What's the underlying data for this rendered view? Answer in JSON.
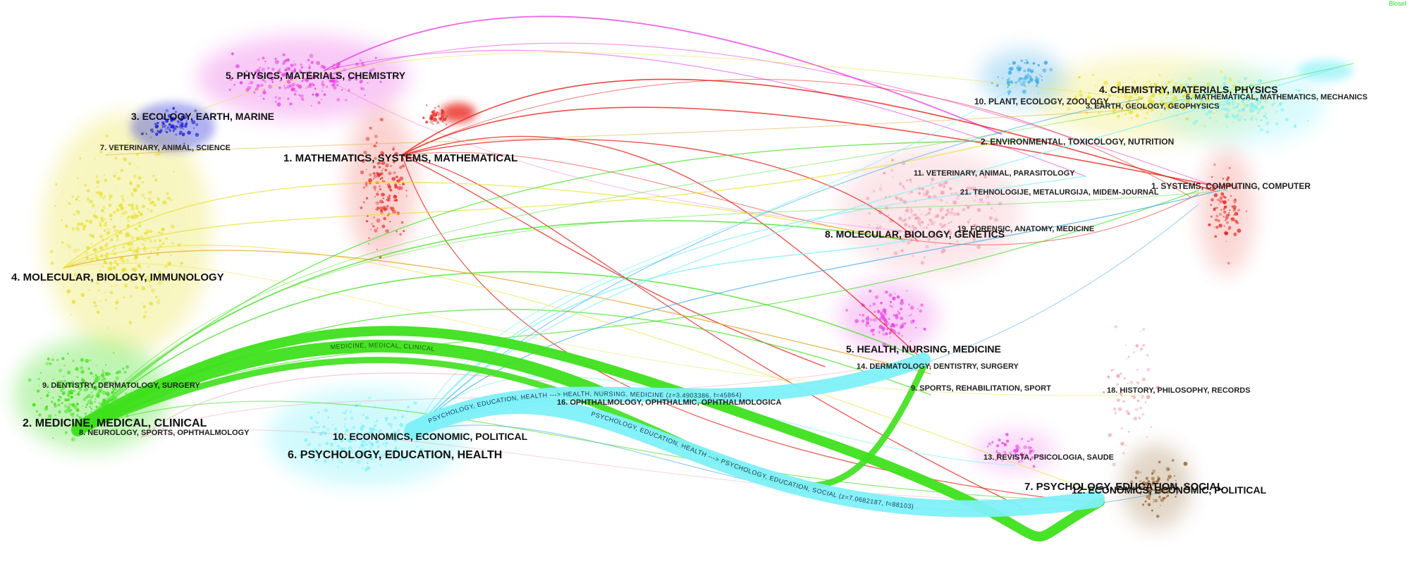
{
  "watermark": "Blosel",
  "colors": {
    "red": "#e8261f",
    "magenta": "#e83fe0",
    "yellow": "#e8e030",
    "green": "#3ee01c",
    "cyan": "#7ef0f8",
    "blue": "#1f22d8",
    "skyblue": "#3aa8e8",
    "orange": "#e0a020",
    "pink": "#f0a0b0",
    "brown": "#8a5a20"
  },
  "citing_clusters": [
    {
      "label": "1. MATHEMATICS, SYSTEMS, MATHEMATICAL",
      "color": "red"
    },
    {
      "label": "2. MEDICINE, MEDICAL, CLINICAL",
      "color": "green"
    },
    {
      "label": "3. ECOLOGY, EARTH, MARINE",
      "color": "blue"
    },
    {
      "label": "4. MOLECULAR, BIOLOGY, IMMUNOLOGY",
      "color": "yellow"
    },
    {
      "label": "5. PHYSICS, MATERIALS, CHEMISTRY",
      "color": "magenta"
    },
    {
      "label": "6. PSYCHOLOGY, EDUCATION, HEALTH",
      "color": "cyan"
    },
    {
      "label": "7. VETERINARY, ANIMAL, SCIENCE",
      "color": "yellow"
    },
    {
      "label": "8. NEUROLOGY, SPORTS, OPHTHALMOLOGY",
      "color": "pink"
    },
    {
      "label": "9. DENTISTRY, DERMATOLOGY, SURGERY",
      "color": "green"
    },
    {
      "label": "10. ECONOMICS, ECONOMIC, POLITICAL",
      "color": "cyan"
    }
  ],
  "cited_clusters": [
    {
      "label": "1. SYSTEMS, COMPUTING, COMPUTER",
      "color": "red"
    },
    {
      "label": "2. ENVIRONMENTAL, TOXICOLOGY, NUTRITION",
      "color": "green"
    },
    {
      "label": "3. EARTH, GEOLOGY, GEOPHYSICS",
      "color": "blue"
    },
    {
      "label": "4. CHEMISTRY, MATERIALS, PHYSICS",
      "color": "yellow"
    },
    {
      "label": "5. HEALTH, NURSING, MEDICINE",
      "color": "magenta"
    },
    {
      "label": "6. MATHEMATICAL, MATHEMATICS, MECHANICS",
      "color": "yellow"
    },
    {
      "label": "7. PSYCHOLOGY, EDUCATION, SOCIAL",
      "color": "cyan"
    },
    {
      "label": "8. MOLECULAR, BIOLOGY, GENETICS",
      "color": "red"
    },
    {
      "label": "9. SPORTS, REHABILITATION, SPORT",
      "color": "green"
    },
    {
      "label": "10. PLANT, ECOLOGY, ZOOLOGY",
      "color": "skyblue"
    },
    {
      "label": "11. VETERINARY, ANIMAL, PARASITOLOGY",
      "color": "pink"
    },
    {
      "label": "12. ECONOMICS, ECONOMIC, POLITICAL",
      "color": "brown"
    },
    {
      "label": "13. REVISTA, PSICOLOGIA, SAUDE",
      "color": "magenta"
    },
    {
      "label": "14. DERMATOLOGY, DENTISTRY, SURGERY",
      "color": "pink"
    },
    {
      "label": "16. OPHTHALMOLOGY, OPHTHALMIC, OPHTHALMOLOGICA",
      "color": "cyan"
    },
    {
      "label": "18. HISTORY, PHILOSOPHY, RECORDS",
      "color": "brown"
    },
    {
      "label": "19. FORENSIC, ANATOMY, MEDICINE",
      "color": "pink"
    },
    {
      "label": "21. TEHNOLOGIJE, METALURGIJA, MIDEM-JOURNAL",
      "color": "pink"
    }
  ],
  "main_paths": [
    {
      "label": "PSYCHOLOGY, EDUCATION, HEALTH ---> HEALTH, NURSING, MEDICINE (z=3.4903386, f=45864)",
      "color": "cyan"
    },
    {
      "label": "PSYCHOLOGY, EDUCATION, HEALTH ---> PSYCHOLOGY, EDUCATION, SOCIAL (z=7.0682187, f=88103)",
      "color": "cyan"
    },
    {
      "label": "MEDICINE, MEDICAL, CLINICAL",
      "color": "green"
    }
  ]
}
